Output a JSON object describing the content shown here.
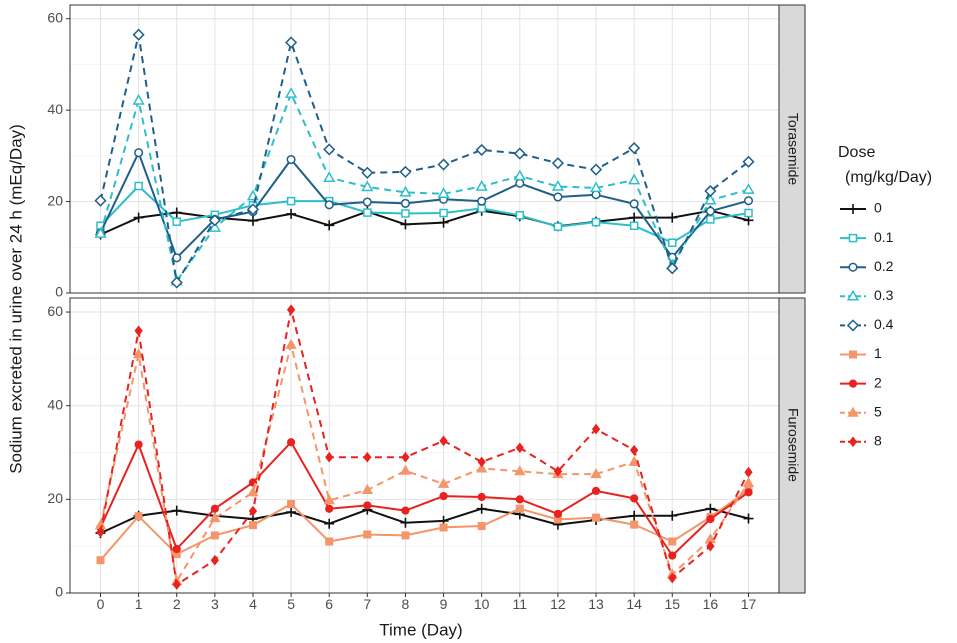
{
  "chart_data": {
    "type": "line",
    "x_label": "Time (Day)",
    "y_label": "Sodium excreted in urine over 24 h (mEq/Day)",
    "x": [
      0,
      1,
      2,
      3,
      4,
      5,
      6,
      7,
      8,
      9,
      10,
      11,
      12,
      13,
      14,
      15,
      16,
      17
    ],
    "x_ticks": [
      "0",
      "1",
      "2",
      "3",
      "4",
      "5",
      "6",
      "7",
      "8",
      "9",
      "10",
      "11",
      "12",
      "13",
      "14",
      "15",
      "16",
      "17"
    ],
    "ylim": [
      0,
      63
    ],
    "y_ticks": [
      0,
      20,
      40,
      60
    ],
    "grid": true,
    "legend": {
      "title_line1": "Dose",
      "title_line2": "(mg/kg/Day)",
      "placement": "right",
      "entries": [
        {
          "label": "0",
          "color": "#111111",
          "marker": "plus",
          "dash": "solid"
        },
        {
          "label": "0.1",
          "color": "#2dbfc9",
          "marker": "square-open",
          "dash": "solid"
        },
        {
          "label": "0.2",
          "color": "#1f5f8b",
          "marker": "circle-open",
          "dash": "solid"
        },
        {
          "label": "0.3",
          "color": "#2dbfc9",
          "marker": "triangle-open",
          "dash": "dashed"
        },
        {
          "label": "0.4",
          "color": "#1f5f8b",
          "marker": "diamond-open",
          "dash": "dashed"
        },
        {
          "label": "1",
          "color": "#f4956a",
          "marker": "square-filled",
          "dash": "solid"
        },
        {
          "label": "2",
          "color": "#e8231f",
          "marker": "circle-filled",
          "dash": "solid"
        },
        {
          "label": "5",
          "color": "#f4956a",
          "marker": "triangle-filled",
          "dash": "dashed"
        },
        {
          "label": "8",
          "color": "#e8231f",
          "marker": "diamond-filled",
          "dash": "dashed"
        }
      ]
    },
    "panels": [
      {
        "name": "Torasemide",
        "series": [
          {
            "name": "0",
            "color": "#111111",
            "marker": "plus",
            "dash": "solid",
            "values": [
              12.8,
              16.5,
              17.6,
              16.5,
              15.8,
              17.3,
              14.8,
              17.8,
              15.0,
              15.4,
              18.0,
              16.8,
              14.6,
              15.6,
              16.5,
              16.5,
              18.0,
              15.9
            ]
          },
          {
            "name": "0.1",
            "color": "#2dbfc9",
            "marker": "square-open",
            "dash": "solid",
            "values": [
              14.7,
              23.4,
              15.6,
              17.1,
              19.2,
              20.1,
              20.1,
              17.6,
              17.4,
              17.5,
              18.5,
              17.0,
              14.5,
              15.5,
              14.7,
              11.0,
              16.1,
              17.5
            ]
          },
          {
            "name": "0.2",
            "color": "#1f5f8b",
            "marker": "circle-open",
            "dash": "solid",
            "values": [
              13.2,
              30.7,
              7.7,
              16.1,
              17.8,
              29.2,
              19.3,
              19.9,
              19.6,
              20.5,
              20.1,
              24.0,
              21.0,
              21.5,
              19.5,
              7.8,
              17.9,
              20.2
            ]
          },
          {
            "name": "0.3",
            "color": "#2dbfc9",
            "marker": "triangle-open",
            "dash": "dashed",
            "values": [
              13.0,
              42.1,
              2.6,
              14.3,
              21.2,
              43.6,
              25.2,
              23.2,
              22.0,
              21.7,
              23.3,
              25.6,
              23.3,
              23.0,
              24.7,
              6.1,
              20.3,
              22.6
            ]
          },
          {
            "name": "0.4",
            "color": "#1f5f8b",
            "marker": "diamond-open",
            "dash": "dashed",
            "values": [
              20.2,
              56.5,
              2.3,
              15.9,
              18.3,
              54.8,
              31.4,
              26.3,
              26.5,
              28.1,
              31.3,
              30.5,
              28.4,
              27.0,
              31.7,
              5.4,
              22.3,
              28.7
            ]
          }
        ]
      },
      {
        "name": "Furosemide",
        "series": [
          {
            "name": "0",
            "color": "#111111",
            "marker": "plus",
            "dash": "solid",
            "values": [
              12.8,
              16.5,
              17.6,
              16.5,
              15.8,
              17.3,
              14.8,
              17.8,
              15.0,
              15.4,
              18.0,
              16.8,
              14.6,
              15.6,
              16.5,
              16.5,
              18.0,
              15.9
            ]
          },
          {
            "name": "1",
            "color": "#f4956a",
            "marker": "square-filled",
            "dash": "solid",
            "values": [
              7.0,
              16.4,
              8.3,
              12.3,
              14.5,
              19.0,
              11.0,
              12.5,
              12.3,
              14.0,
              14.3,
              18.0,
              15.7,
              16.1,
              14.6,
              11.0,
              16.2,
              22.0
            ]
          },
          {
            "name": "2",
            "color": "#e8231f",
            "marker": "circle-filled",
            "dash": "solid",
            "values": [
              14.0,
              31.7,
              9.4,
              18.0,
              23.6,
              32.2,
              18.0,
              18.7,
              17.6,
              20.7,
              20.5,
              20.0,
              16.9,
              21.8,
              20.2,
              8.0,
              15.8,
              21.5
            ]
          },
          {
            "name": "5",
            "color": "#f4956a",
            "marker": "triangle-filled",
            "dash": "dashed",
            "values": [
              14.5,
              51.0,
              2.5,
              16.0,
              21.5,
              53.0,
              19.8,
              22.0,
              26.1,
              23.3,
              26.6,
              26.0,
              25.4,
              25.4,
              28.0,
              4.0,
              11.5,
              23.5
            ]
          },
          {
            "name": "8",
            "color": "#e8231f",
            "marker": "diamond-filled",
            "dash": "dashed",
            "values": [
              13.0,
              56.0,
              1.8,
              7.0,
              17.5,
              60.5,
              29.0,
              29.0,
              29.0,
              32.5,
              28.0,
              31.0,
              26.0,
              35.0,
              30.5,
              3.2,
              10.0,
              25.8
            ]
          }
        ]
      }
    ]
  }
}
